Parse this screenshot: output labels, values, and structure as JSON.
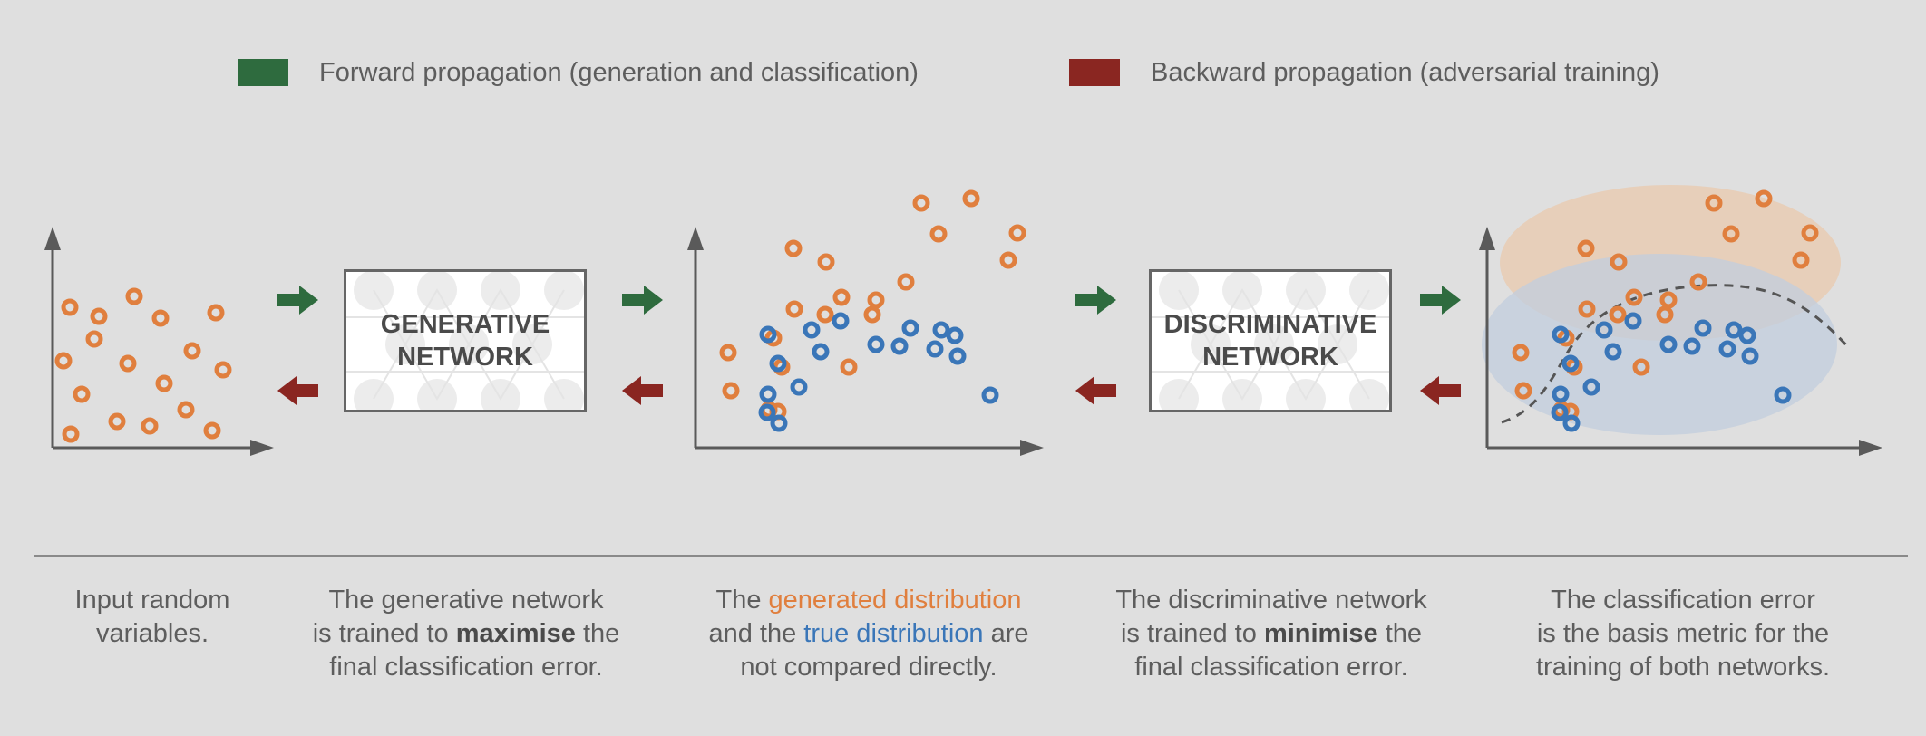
{
  "colors": {
    "background": "#dfdfdf",
    "forward": "#2e6b3e",
    "backward": "#8a2621",
    "generated": "#e07f3e",
    "true": "#3a76b8",
    "axis": "#5a5a5a",
    "region_generated": "#e9c9ad",
    "region_true": "#c2cedd"
  },
  "legend": {
    "forward": {
      "label": "Forward propagation (generation and classification)",
      "icon": "green-swatch"
    },
    "backward": {
      "label": "Backward propagation (adversarial training)",
      "icon": "red-swatch"
    }
  },
  "networks": {
    "generative": {
      "line1": "GENERATIVE",
      "line2": "NETWORK"
    },
    "discriminative": {
      "line1": "DISCRIMINATIVE",
      "line2": "NETWORK"
    }
  },
  "captions": {
    "input": {
      "l1": "Input random",
      "l2": "variables."
    },
    "generative": {
      "l1": "The generative network",
      "l2a": "is trained to ",
      "l2b": "maximise",
      "l2c": " the",
      "l3": "final classification error."
    },
    "distribution": {
      "l1a": "The ",
      "l1b": "generated distribution",
      "l2a": "and the ",
      "l2b": "true distribution",
      "l2c": " are",
      "l3": "not compared directly."
    },
    "discriminative": {
      "l1": "The discriminative network",
      "l2a": "is trained to ",
      "l2b": "minimise",
      "l2c": " the",
      "l3": "final classification error."
    },
    "error": {
      "l1": "The classification error",
      "l2": "is the basis metric for the",
      "l3": "training of both networks."
    }
  },
  "plots": {
    "input_points": [
      [
        17,
        -155
      ],
      [
        49,
        -145
      ],
      [
        88,
        -167
      ],
      [
        117,
        -143
      ],
      [
        178,
        -149
      ],
      [
        44,
        -120
      ],
      [
        10,
        -96
      ],
      [
        81,
        -93
      ],
      [
        152,
        -107
      ],
      [
        186,
        -86
      ],
      [
        30,
        -59
      ],
      [
        121,
        -71
      ],
      [
        18,
        -15
      ],
      [
        69,
        -29
      ],
      [
        105,
        -24
      ],
      [
        145,
        -42
      ],
      [
        174,
        -19
      ]
    ],
    "generated_points": [
      [
        104,
        -220
      ],
      [
        140,
        -205
      ],
      [
        245,
        -270
      ],
      [
        264,
        -236
      ],
      [
        228,
        -183
      ],
      [
        195,
        -163
      ],
      [
        157,
        -166
      ],
      [
        191,
        -147
      ],
      [
        105,
        -153
      ],
      [
        165,
        -89
      ],
      [
        139,
        -147
      ],
      [
        32,
        -105
      ],
      [
        91,
        -89
      ],
      [
        82,
        -121
      ],
      [
        77,
        -42
      ],
      [
        35,
        -63
      ],
      [
        87,
        -40
      ],
      [
        300,
        -275
      ],
      [
        341,
        -207
      ],
      [
        351,
        -237
      ]
    ],
    "true_points": [
      [
        76,
        -125
      ],
      [
        124,
        -130
      ],
      [
        87,
        -93
      ],
      [
        134,
        -106
      ],
      [
        110,
        -67
      ],
      [
        156,
        -140
      ],
      [
        195,
        -114
      ],
      [
        221,
        -112
      ],
      [
        233,
        -132
      ],
      [
        267,
        -130
      ],
      [
        282,
        -124
      ],
      [
        285,
        -101
      ],
      [
        260,
        -109
      ],
      [
        75,
        -39
      ],
      [
        76,
        -59
      ],
      [
        321,
        -58
      ],
      [
        88,
        -27
      ]
    ]
  }
}
